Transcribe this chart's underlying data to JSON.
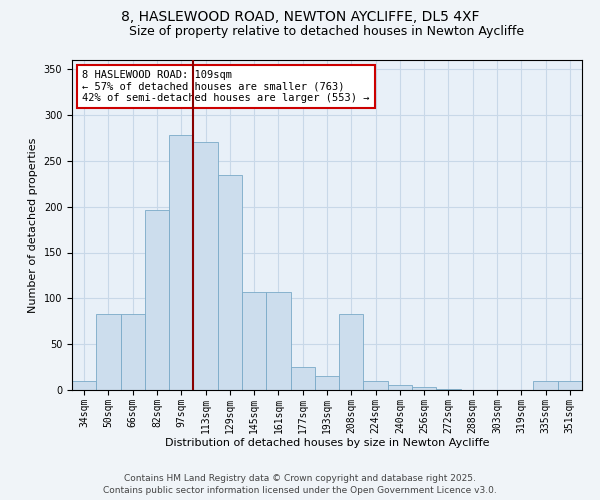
{
  "title": "8, HASLEWOOD ROAD, NEWTON AYCLIFFE, DL5 4XF",
  "subtitle": "Size of property relative to detached houses in Newton Aycliffe",
  "xlabel": "Distribution of detached houses by size in Newton Aycliffe",
  "ylabel": "Number of detached properties",
  "bar_color": "#ccdded",
  "bar_edge_color": "#7aaac8",
  "grid_color": "#c8d8e8",
  "background_color": "#e8f0f8",
  "vline_color": "#880000",
  "categories": [
    "34sqm",
    "50sqm",
    "66sqm",
    "82sqm",
    "97sqm",
    "113sqm",
    "129sqm",
    "145sqm",
    "161sqm",
    "177sqm",
    "193sqm",
    "208sqm",
    "224sqm",
    "240sqm",
    "256sqm",
    "272sqm",
    "288sqm",
    "303sqm",
    "319sqm",
    "335sqm",
    "351sqm"
  ],
  "values": [
    10,
    83,
    83,
    196,
    278,
    270,
    235,
    107,
    107,
    25,
    15,
    83,
    10,
    5,
    3,
    1,
    0,
    0,
    0,
    10,
    10
  ],
  "ylim": [
    0,
    360
  ],
  "yticks": [
    0,
    50,
    100,
    150,
    200,
    250,
    300,
    350
  ],
  "annotation_text": "8 HASLEWOOD ROAD: 109sqm\n← 57% of detached houses are smaller (763)\n42% of semi-detached houses are larger (553) →",
  "annotation_box_color": "#ffffff",
  "annotation_box_edge": "#cc0000",
  "footer_line1": "Contains HM Land Registry data © Crown copyright and database right 2025.",
  "footer_line2": "Contains public sector information licensed under the Open Government Licence v3.0.",
  "title_fontsize": 10,
  "subtitle_fontsize": 9,
  "xlabel_fontsize": 8,
  "ylabel_fontsize": 8,
  "tick_fontsize": 7,
  "annotation_fontsize": 7.5,
  "footer_fontsize": 6.5,
  "vline_x_index": 5
}
